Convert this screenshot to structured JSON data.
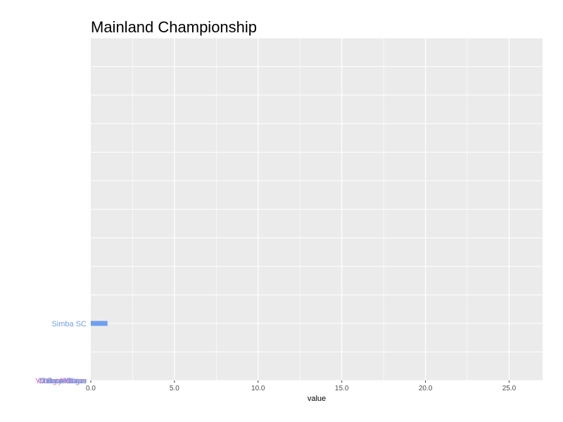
{
  "chart_data": {
    "type": "bar",
    "orientation": "horizontal",
    "title": "Mainland Championship",
    "xlabel": "value",
    "ylabel": "",
    "xlim": [
      0,
      27
    ],
    "xticks": [
      0,
      5,
      10,
      15,
      20,
      25
    ],
    "xtick_labels": [
      "0.0",
      "5.0",
      "10.0",
      "15.0",
      "20.0",
      "25.0"
    ],
    "grid": true,
    "background": "#ebebeb",
    "bars": [
      {
        "label": "Simba SC",
        "value": 1,
        "rank": 2,
        "color": "#6f9ff0"
      },
      {
        "label": "Young Africans",
        "value": 0,
        "rank": 0,
        "color": "#e46ea4"
      },
      {
        "label": "Pan African",
        "value": 0,
        "rank": 0,
        "color": "#9a8de8"
      },
      {
        "label": "Coastal Union",
        "value": 0,
        "rank": 0,
        "color": "#c77de0"
      },
      {
        "label": "Mtibwa Sugar",
        "value": 0,
        "rank": 0,
        "color": "#8a86dc"
      },
      {
        "label": "Tukuyu Stars",
        "value": 0,
        "rank": 0,
        "color": "#6aa3d8"
      }
    ]
  }
}
